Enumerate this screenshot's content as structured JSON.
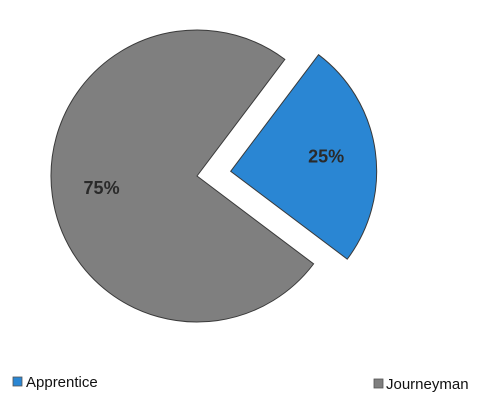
{
  "chart_data": {
    "type": "pie",
    "title": "",
    "slices": [
      {
        "label": "Apprentice",
        "value": 25,
        "display": "25%",
        "color": "#2a86d3",
        "exploded": true
      },
      {
        "label": "Journeyman",
        "value": 75,
        "display": "75%",
        "color": "#7f7f7f",
        "exploded": false
      }
    ],
    "legend": {
      "position": "bottom",
      "entries": [
        "Apprentice",
        "Journeyman"
      ]
    }
  }
}
